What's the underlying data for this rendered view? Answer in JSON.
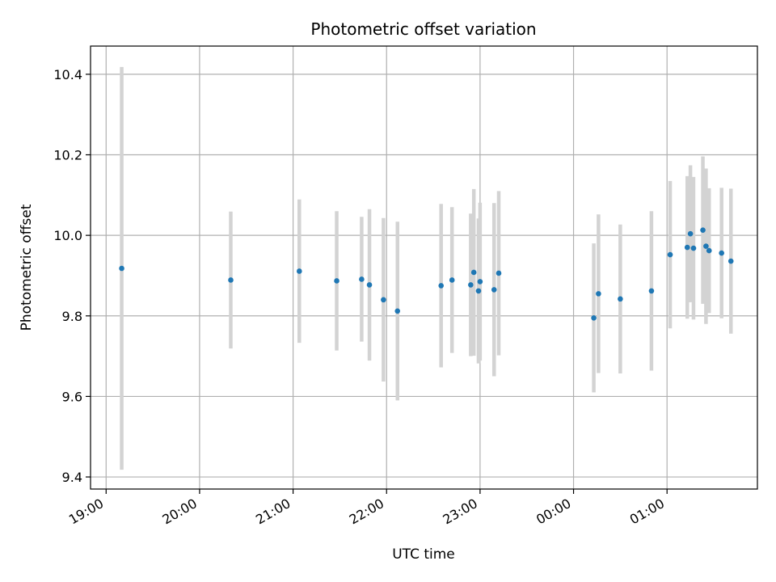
{
  "chart_data": {
    "type": "scatter",
    "title": "Photometric offset variation",
    "xlabel": "UTC time",
    "ylabel": "Photometric offset",
    "x_axis_kind": "time",
    "xlim": [
      "18:50",
      "1:58"
    ],
    "ylim": [
      9.37,
      10.47
    ],
    "grid": true,
    "x_ticks": [
      "19:00",
      "20:00",
      "21:00",
      "22:00",
      "23:00",
      "00:00",
      "01:00"
    ],
    "y_ticks": [
      "9.4",
      "9.6",
      "9.8",
      "10.0",
      "10.2",
      "10.4"
    ],
    "point_color": "#1f77b4",
    "errorbar_color": "#d3d3d3",
    "series": [
      {
        "points": [
          {
            "t": "19:10",
            "y": 9.918,
            "err": 0.5
          },
          {
            "t": "20:20",
            "y": 9.889,
            "err": 0.17
          },
          {
            "t": "21:04",
            "y": 9.911,
            "err": 0.178
          },
          {
            "t": "21:28",
            "y": 9.887,
            "err": 0.173
          },
          {
            "t": "21:44",
            "y": 9.891,
            "err": 0.155
          },
          {
            "t": "21:49",
            "y": 9.877,
            "err": 0.188
          },
          {
            "t": "21:58",
            "y": 9.84,
            "err": 0.203
          },
          {
            "t": "22:07",
            "y": 9.812,
            "err": 0.222
          },
          {
            "t": "22:35",
            "y": 9.875,
            "err": 0.203
          },
          {
            "t": "22:42",
            "y": 9.889,
            "err": 0.181
          },
          {
            "t": "22:54",
            "y": 9.877,
            "err": 0.177
          },
          {
            "t": "22:56",
            "y": 9.908,
            "err": 0.207
          },
          {
            "t": "22:59",
            "y": 9.862,
            "err": 0.18
          },
          {
            "t": "23:00",
            "y": 9.885,
            "err": 0.196
          },
          {
            "t": "23:09",
            "y": 9.865,
            "err": 0.215
          },
          {
            "t": "23:12",
            "y": 9.906,
            "err": 0.204
          },
          {
            "t": "0:13",
            "y": 9.795,
            "err": 0.185
          },
          {
            "t": "0:16",
            "y": 9.855,
            "err": 0.197
          },
          {
            "t": "0:30",
            "y": 9.842,
            "err": 0.185
          },
          {
            "t": "0:50",
            "y": 9.862,
            "err": 0.198
          },
          {
            "t": "1:02",
            "y": 9.952,
            "err": 0.183
          },
          {
            "t": "1:13",
            "y": 9.97,
            "err": 0.177
          },
          {
            "t": "1:15",
            "y": 10.004,
            "err": 0.17
          },
          {
            "t": "1:17",
            "y": 9.968,
            "err": 0.177
          },
          {
            "t": "1:23",
            "y": 10.013,
            "err": 0.183
          },
          {
            "t": "1:25",
            "y": 9.973,
            "err": 0.193
          },
          {
            "t": "1:27",
            "y": 9.962,
            "err": 0.155
          },
          {
            "t": "1:35",
            "y": 9.956,
            "err": 0.162
          },
          {
            "t": "1:41",
            "y": 9.936,
            "err": 0.18
          }
        ]
      }
    ]
  }
}
